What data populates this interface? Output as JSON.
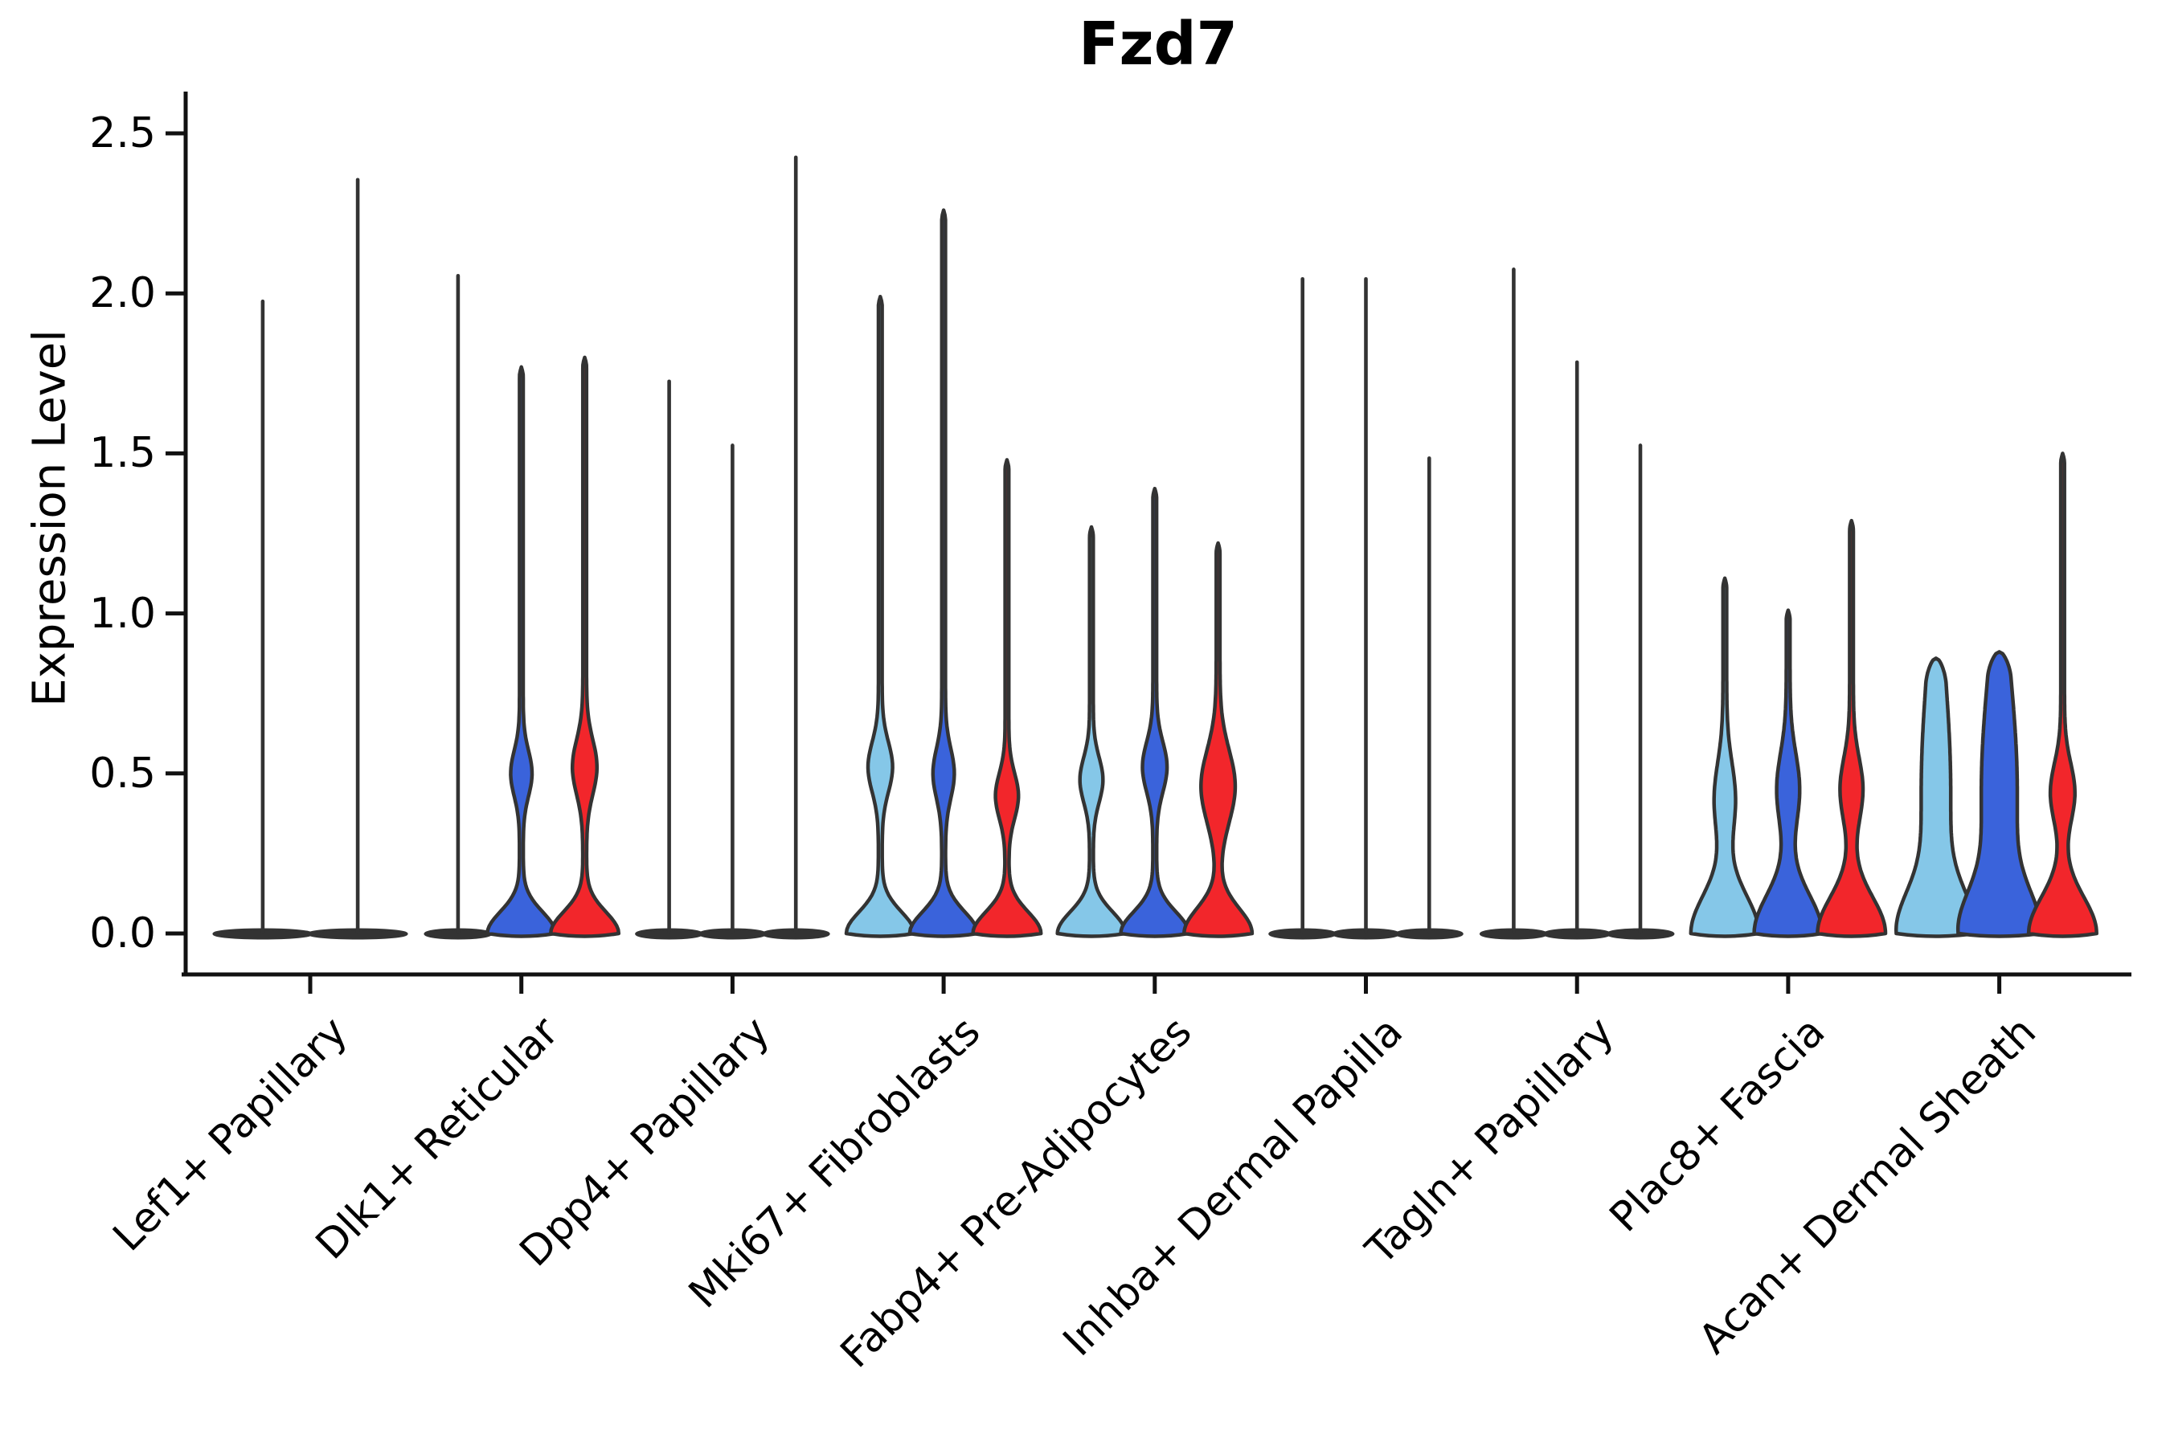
{
  "chart_data": {
    "type": "violin",
    "title": "Fzd7",
    "xlabel": "",
    "ylabel": "Expression Level",
    "ylim": [
      0,
      2.5
    ],
    "yticks": [
      0.0,
      0.5,
      1.0,
      1.5,
      2.0,
      2.5
    ],
    "ytick_labels": [
      "0.0",
      "0.5",
      "1.0",
      "1.5",
      "2.0",
      "2.5"
    ],
    "grid": false,
    "legend": "none",
    "series_colors": {
      "light-blue": "#85C7E8",
      "dark-blue": "#3A63DB",
      "red": "#F2262B"
    },
    "outline_color": "#333333",
    "axis_color": "#111111",
    "categories": [
      "Lef1+ Papillary",
      "Dlk1+ Reticular",
      "Dpp4+ Papillary",
      "Mki67+ Fibroblasts",
      "Fabp4+ Pre-Adipocytes",
      "Inhba+ Dermal Papilla",
      "Tagln+ Papillary",
      "Plac8+ Fascia",
      "Acan+ Dermal Sheath"
    ],
    "groups": [
      {
        "label": "Lef1+ Papillary",
        "violins": [
          {
            "series": "light-blue",
            "max": 1.98,
            "shape": "flat"
          },
          {
            "series": "dark-blue",
            "max": 2.36,
            "shape": "flat"
          }
        ]
      },
      {
        "label": "Dlk1+ Reticular",
        "violins": [
          {
            "series": "light-blue",
            "max": 2.06,
            "shape": "flat"
          },
          {
            "series": "dark-blue",
            "max": 1.77,
            "shape": "lens",
            "bulge_center": 0.5,
            "bulge_halfwidth": 11,
            "bulge_sigma": 0.1
          },
          {
            "series": "red",
            "max": 1.8,
            "shape": "lens",
            "bulge_center": 0.52,
            "bulge_halfwidth": 13,
            "bulge_sigma": 0.12
          }
        ]
      },
      {
        "label": "Dpp4+ Papillary",
        "violins": [
          {
            "series": "light-blue",
            "max": 1.73,
            "shape": "flat"
          },
          {
            "series": "dark-blue",
            "max": 1.53,
            "shape": "flat"
          },
          {
            "series": "red",
            "max": 2.43,
            "shape": "flat"
          }
        ]
      },
      {
        "label": "Mki67+ Fibroblasts",
        "violins": [
          {
            "series": "light-blue",
            "max": 1.99,
            "shape": "lens",
            "bulge_center": 0.52,
            "bulge_halfwidth": 13,
            "bulge_sigma": 0.11
          },
          {
            "series": "dark-blue",
            "max": 2.26,
            "shape": "lens",
            "bulge_center": 0.5,
            "bulge_halfwidth": 11,
            "bulge_sigma": 0.11
          },
          {
            "series": "red",
            "max": 1.48,
            "shape": "lens",
            "bulge_center": 0.43,
            "bulge_halfwidth": 12,
            "bulge_sigma": 0.1
          }
        ]
      },
      {
        "label": "Fabp4+ Pre-Adipocytes",
        "violins": [
          {
            "series": "light-blue",
            "max": 1.27,
            "shape": "lens",
            "bulge_center": 0.48,
            "bulge_halfwidth": 12,
            "bulge_sigma": 0.1
          },
          {
            "series": "dark-blue",
            "max": 1.39,
            "shape": "lens",
            "bulge_center": 0.52,
            "bulge_halfwidth": 13,
            "bulge_sigma": 0.11
          },
          {
            "series": "red",
            "max": 1.22,
            "shape": "lens",
            "bulge_center": 0.46,
            "bulge_halfwidth": 19,
            "bulge_sigma": 0.16,
            "base_sigma": 0.11
          }
        ]
      },
      {
        "label": "Inhba+ Dermal Papilla",
        "violins": [
          {
            "series": "light-blue",
            "max": 2.05,
            "shape": "flat"
          },
          {
            "series": "dark-blue",
            "max": 2.05,
            "shape": "flat"
          },
          {
            "series": "red",
            "max": 1.49,
            "shape": "flat"
          }
        ]
      },
      {
        "label": "Tagln+ Papillary",
        "violins": [
          {
            "series": "light-blue",
            "max": 2.08,
            "shape": "flat"
          },
          {
            "series": "dark-blue",
            "max": 1.79,
            "shape": "flat"
          },
          {
            "series": "red",
            "max": 1.53,
            "shape": "flat"
          }
        ]
      },
      {
        "label": "Plac8+ Fascia",
        "violins": [
          {
            "series": "light-blue",
            "max": 1.11,
            "shape": "wide",
            "bulge_center": 0.42,
            "bulge_halfwidth": 11,
            "bulge_sigma": 0.16,
            "base_sigma": 0.17
          },
          {
            "series": "dark-blue",
            "max": 1.01,
            "shape": "wide",
            "bulge_center": 0.45,
            "bulge_halfwidth": 12,
            "bulge_sigma": 0.16,
            "base_sigma": 0.17
          },
          {
            "series": "red",
            "max": 1.29,
            "shape": "wide",
            "bulge_center": 0.45,
            "bulge_halfwidth": 12,
            "bulge_sigma": 0.14,
            "base_sigma": 0.16
          }
        ]
      },
      {
        "label": "Acan+ Dermal Sheath",
        "violins": [
          {
            "series": "light-blue",
            "max": 0.86,
            "shape": "column",
            "column_halfwidth": 16,
            "base_sigma": 0.18
          },
          {
            "series": "dark-blue",
            "max": 0.88,
            "shape": "column",
            "column_halfwidth": 20,
            "base_sigma": 0.18
          },
          {
            "series": "red",
            "max": 1.5,
            "shape": "wide",
            "bulge_center": 0.44,
            "bulge_halfwidth": 13,
            "bulge_sigma": 0.13,
            "base_sigma": 0.16
          }
        ]
      }
    ]
  }
}
